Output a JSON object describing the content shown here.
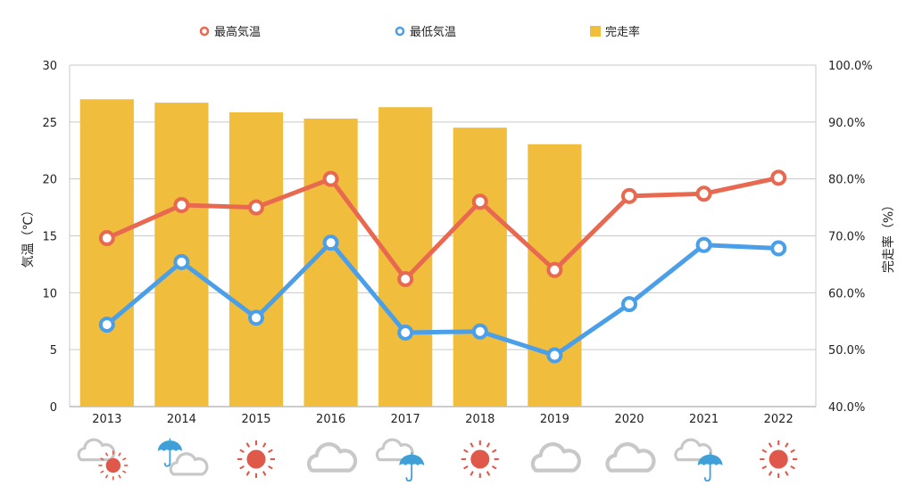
{
  "chart_data": {
    "type": "bar",
    "categories": [
      "2013",
      "2014",
      "2015",
      "2016",
      "2017",
      "2018",
      "2019",
      "2020",
      "2021",
      "2022"
    ],
    "ylabel": "気温（℃）",
    "y2label": "完走率（%）",
    "ylim": [
      0,
      30
    ],
    "y2lim": [
      40,
      100
    ],
    "yticks": [
      "0",
      "5",
      "10",
      "15",
      "20",
      "25",
      "30"
    ],
    "y2ticks": [
      "40.0%",
      "50.0%",
      "60.0%",
      "70.0%",
      "80.0%",
      "90.0%",
      "100.0%"
    ],
    "grid": true,
    "legend_position": "top",
    "series": [
      {
        "name": "最高気温",
        "type": "line",
        "axis": "left",
        "color": "#E8694F",
        "values": [
          14.8,
          17.7,
          17.5,
          20.0,
          11.2,
          18.0,
          12.0,
          18.5,
          18.7,
          20.1
        ]
      },
      {
        "name": "最低気温",
        "type": "line",
        "axis": "left",
        "color": "#4B9FE8",
        "values": [
          7.2,
          12.7,
          7.8,
          14.4,
          6.5,
          6.6,
          4.5,
          9.0,
          14.2,
          13.9
        ]
      },
      {
        "name": "完走率",
        "type": "bar",
        "axis": "right",
        "color": "#F0BE3C",
        "unit": "%",
        "values": [
          94.0,
          93.4,
          91.7,
          90.6,
          92.6,
          89.0,
          86.1,
          null,
          null,
          null
        ]
      }
    ]
  },
  "weather_icons": [
    [
      "cloud-icon",
      "sun-icon"
    ],
    [
      "umbrella-icon",
      "cloud-icon"
    ],
    [
      "sun-icon"
    ],
    [
      "cloud-icon"
    ],
    [
      "cloud-icon",
      "umbrella-icon"
    ],
    [
      "sun-icon"
    ],
    [
      "cloud-icon"
    ],
    [
      "cloud-icon"
    ],
    [
      "cloud-icon",
      "umbrella-icon"
    ],
    [
      "sun-icon"
    ]
  ],
  "colors": {
    "sun": "#E0584A",
    "umbrella": "#3FA0D8",
    "cloud": "#c8c8c8",
    "grid": "#c9c9c9"
  }
}
